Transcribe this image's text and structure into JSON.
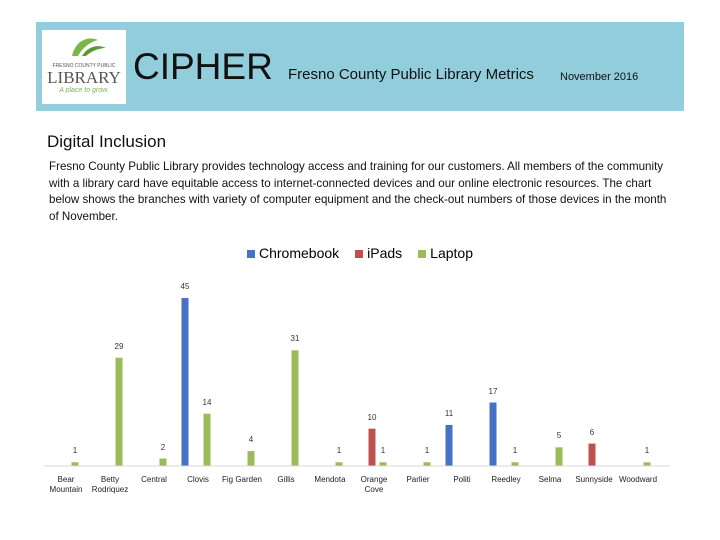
{
  "header": {
    "logo_top": "FRESNO COUNTY PUBLIC",
    "logo_name": "LIBRARY",
    "logo_tagline": "A place to grow.",
    "title": "CIPHER",
    "subtitle": "Fresno County Public Library Metrics",
    "date": "November 2016"
  },
  "section_title": "Digital Inclusion",
  "paragraph": "Fresno County Public Library provides technology access and training for our customers. All members of the community with a library card have equitable access to internet-connected devices and our online electronic resources. The chart below shows the branches with variety of computer equipment and the check-out numbers of those devices in the month of November.",
  "chart_data": {
    "type": "bar",
    "categories": [
      "Bear Mountain",
      "Betty Rodriquez",
      "Central",
      "Clovis",
      "Fig Garden",
      "Gillis",
      "Mendota",
      "Orange Cove",
      "Parlier",
      "Politi",
      "Reedley",
      "Selma",
      "Sunnyside",
      "Woodward"
    ],
    "series": [
      {
        "name": "Chromebook",
        "color": "#4472c4",
        "values": [
          null,
          null,
          null,
          45,
          null,
          null,
          null,
          null,
          null,
          11,
          17,
          null,
          null,
          null
        ]
      },
      {
        "name": "iPads",
        "color": "#c0504d",
        "values": [
          null,
          null,
          null,
          null,
          null,
          null,
          null,
          10,
          null,
          null,
          null,
          null,
          6,
          null
        ]
      },
      {
        "name": "Laptop",
        "color": "#9bbb59",
        "values": [
          1,
          29,
          2,
          14,
          4,
          31,
          1,
          1,
          1,
          null,
          1,
          5,
          null,
          1
        ]
      }
    ],
    "legend": "top",
    "grid": false
  }
}
